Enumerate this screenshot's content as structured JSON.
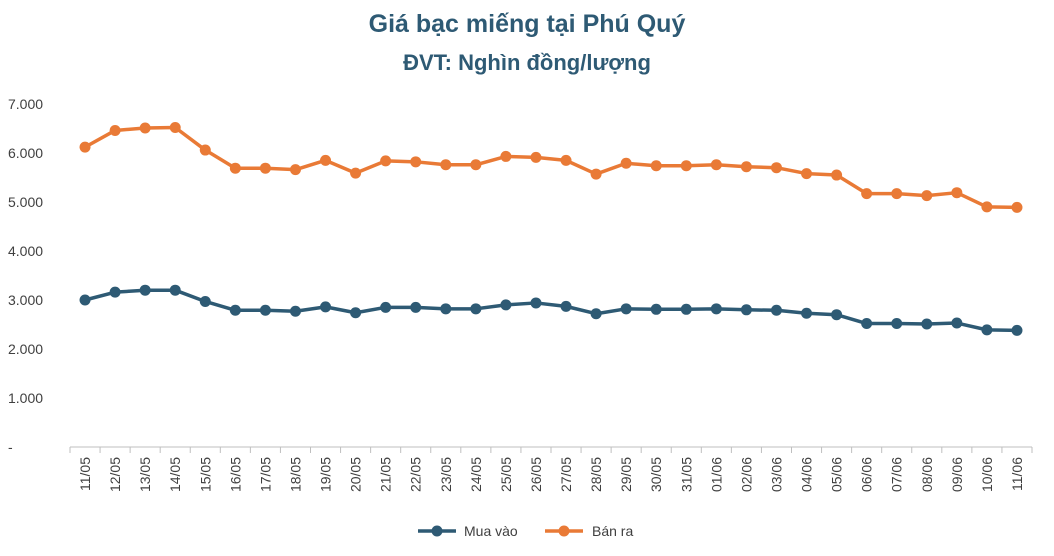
{
  "chart_data": {
    "type": "line",
    "title": "Giá bạc miếng tại Phú Quý",
    "subtitle": "ĐVT: Nghìn đồng/lượng",
    "x": [
      "11/05",
      "12/05",
      "13/05",
      "14/05",
      "15/05",
      "16/05",
      "17/05",
      "18/05",
      "19/05",
      "20/05",
      "21/05",
      "22/05",
      "23/05",
      "24/05",
      "25/05",
      "26/05",
      "27/05",
      "28/05",
      "29/05",
      "30/05",
      "31/05",
      "01/06",
      "02/06",
      "03/06",
      "04/06",
      "05/06",
      "06/06",
      "07/06",
      "08/06",
      "09/06",
      "10/06",
      "11/06"
    ],
    "y_ticks": [
      "-",
      "1.000",
      "2.000",
      "3.000",
      "4.000",
      "5.000",
      "6.000",
      "7.000"
    ],
    "ylim": [
      0,
      7000
    ],
    "grid": false,
    "legend_position": "bottom",
    "series": [
      {
        "name": "Mua vào",
        "color": "#2e5a74",
        "values": [
          3000,
          3160,
          3200,
          3200,
          2970,
          2790,
          2790,
          2770,
          2860,
          2740,
          2850,
          2850,
          2820,
          2820,
          2900,
          2940,
          2870,
          2720,
          2820,
          2810,
          2810,
          2820,
          2800,
          2790,
          2730,
          2700,
          2520,
          2520,
          2510,
          2530,
          2390,
          2380
        ]
      },
      {
        "name": "Bán ra",
        "color": "#e97a36",
        "values": [
          6120,
          6460,
          6510,
          6520,
          6060,
          5690,
          5690,
          5660,
          5850,
          5590,
          5840,
          5820,
          5760,
          5760,
          5930,
          5910,
          5850,
          5570,
          5790,
          5740,
          5740,
          5760,
          5720,
          5700,
          5580,
          5550,
          5170,
          5170,
          5130,
          5190,
          4900,
          4890
        ]
      }
    ]
  }
}
